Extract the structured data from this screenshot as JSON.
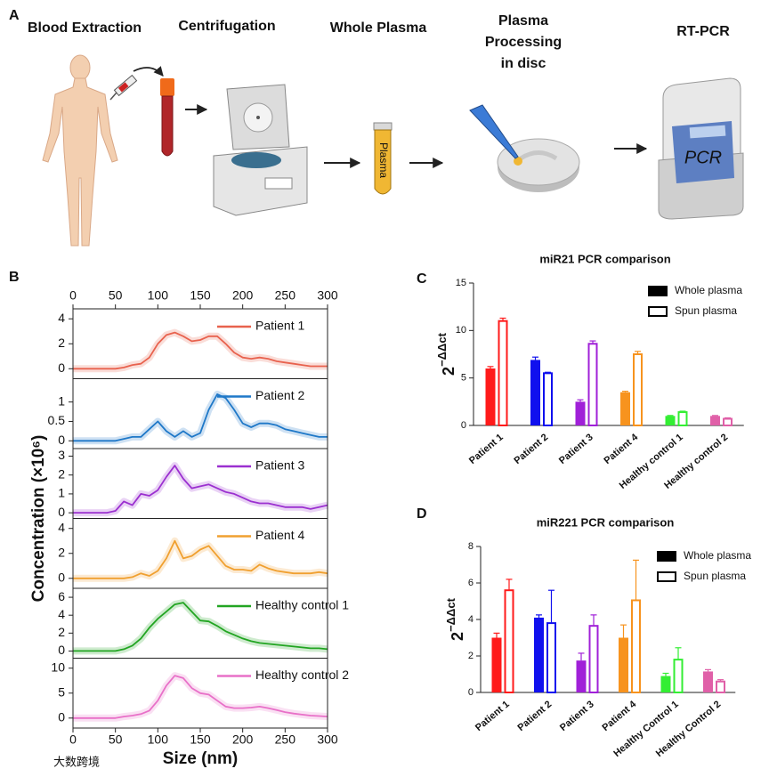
{
  "panel_labels": [
    "A",
    "B",
    "C",
    "D"
  ],
  "workflow": {
    "steps": [
      {
        "title_lines": [
          "Blood Extraction"
        ]
      },
      {
        "title_lines": [
          "Centrifugation"
        ]
      },
      {
        "title_lines": [
          "Whole Plasma"
        ]
      },
      {
        "title_lines": [
          "Plasma",
          "Processing",
          "in disc"
        ]
      },
      {
        "title_lines": [
          "RT-PCR"
        ]
      }
    ],
    "tube_label": "Plasma",
    "device_label": "PCR"
  },
  "watermark": "大数跨境",
  "chart_data": [
    {
      "type": "line",
      "xlabel": "Size (nm)",
      "ylabel": "Concentration (×10⁶)",
      "xlim": [
        0,
        300
      ],
      "xticks": [
        0,
        50,
        100,
        150,
        200,
        250,
        300
      ],
      "x": [
        0,
        10,
        20,
        30,
        40,
        50,
        60,
        70,
        80,
        90,
        100,
        110,
        120,
        130,
        140,
        150,
        160,
        170,
        180,
        190,
        200,
        210,
        220,
        230,
        240,
        250,
        260,
        270,
        280,
        290,
        300
      ],
      "series": [
        {
          "name": "Patient 1",
          "color": "#e8624e",
          "ylim": [
            -0.8,
            4.8
          ],
          "yticks": [
            0,
            2,
            4
          ],
          "values": [
            0,
            0,
            0,
            0,
            0,
            0,
            0.1,
            0.3,
            0.4,
            0.9,
            2.0,
            2.7,
            2.9,
            2.6,
            2.2,
            2.3,
            2.6,
            2.6,
            2.0,
            1.3,
            0.9,
            0.8,
            0.9,
            0.8,
            0.6,
            0.5,
            0.4,
            0.3,
            0.2,
            0.2,
            0.2
          ]
        },
        {
          "name": "Patient 2",
          "color": "#1f78c8",
          "ylim": [
            -0.2,
            1.6
          ],
          "yticks": [
            0,
            0.5,
            1
          ],
          "values": [
            0,
            0,
            0,
            0,
            0,
            0,
            0.05,
            0.1,
            0.1,
            0.3,
            0.5,
            0.25,
            0.1,
            0.25,
            0.1,
            0.2,
            0.8,
            1.2,
            1.1,
            0.8,
            0.45,
            0.35,
            0.45,
            0.45,
            0.4,
            0.3,
            0.25,
            0.2,
            0.15,
            0.1,
            0.1
          ]
        },
        {
          "name": "Patient 3",
          "color": "#9b30d0",
          "ylim": [
            -0.3,
            3.4
          ],
          "yticks": [
            0,
            1,
            2,
            3
          ],
          "values": [
            0,
            0,
            0,
            0,
            0,
            0.1,
            0.6,
            0.4,
            1.0,
            0.9,
            1.2,
            1.9,
            2.5,
            1.8,
            1.3,
            1.4,
            1.5,
            1.3,
            1.1,
            1.0,
            0.8,
            0.6,
            0.5,
            0.5,
            0.4,
            0.3,
            0.3,
            0.3,
            0.2,
            0.3,
            0.4
          ]
        },
        {
          "name": "Patient 4",
          "color": "#f0a030",
          "ylim": [
            -0.8,
            4.8
          ],
          "yticks": [
            0,
            2,
            4
          ],
          "values": [
            0,
            0,
            0,
            0,
            0,
            0,
            0,
            0.1,
            0.4,
            0.2,
            0.6,
            1.6,
            3.0,
            1.6,
            1.8,
            2.3,
            2.6,
            1.8,
            1.0,
            0.7,
            0.7,
            0.6,
            1.1,
            0.8,
            0.6,
            0.5,
            0.4,
            0.4,
            0.4,
            0.5,
            0.4
          ]
        },
        {
          "name": "Healthy control 1",
          "color": "#22a522",
          "ylim": [
            -0.8,
            7
          ],
          "yticks": [
            0,
            2,
            4,
            6
          ],
          "values": [
            0,
            0,
            0,
            0,
            0,
            0,
            0.2,
            0.6,
            1.4,
            2.6,
            3.6,
            4.4,
            5.2,
            5.4,
            4.4,
            3.4,
            3.3,
            2.8,
            2.2,
            1.8,
            1.4,
            1.1,
            0.9,
            0.8,
            0.7,
            0.6,
            0.5,
            0.4,
            0.3,
            0.3,
            0.2
          ]
        },
        {
          "name": "Healthy control 2",
          "color": "#e870c8",
          "ylim": [
            -2,
            12
          ],
          "yticks": [
            0,
            5,
            10
          ],
          "values": [
            0,
            0,
            0,
            0,
            0,
            0,
            0.3,
            0.5,
            0.8,
            1.5,
            3.5,
            6.5,
            8.5,
            8.0,
            6.0,
            5.0,
            4.7,
            3.5,
            2.3,
            2.0,
            2.0,
            2.1,
            2.3,
            2.0,
            1.6,
            1.2,
            0.9,
            0.7,
            0.5,
            0.4,
            0.3
          ]
        }
      ]
    },
    {
      "type": "bar",
      "title": "miR21 PCR comparison",
      "ylabel": {
        "base": "2",
        "exponent": "−ΔΔct"
      },
      "categories": [
        "Patient 1",
        "Patient 2",
        "Patient 3",
        "Patient 4",
        "Healthy control 1",
        "Healthy control 2"
      ],
      "category_colors": [
        "#ff1a1a",
        "#1010ee",
        "#a020d8",
        "#f7931e",
        "#33ee33",
        "#e060a8"
      ],
      "ylim": [
        0,
        15
      ],
      "yticks": [
        0,
        5,
        10,
        15
      ],
      "legend": "upper right",
      "series": [
        {
          "name": "Whole plasma",
          "style": "filled",
          "values": [
            6.0,
            6.9,
            2.5,
            3.5,
            1.0,
            1.0
          ],
          "errors": [
            0.2,
            0.3,
            0.2,
            0.1,
            0.05,
            0.05
          ]
        },
        {
          "name": "Spun  plasma",
          "style": "open",
          "values": [
            11.0,
            5.5,
            8.6,
            7.5,
            1.4,
            0.7
          ],
          "errors": [
            0.3,
            0.1,
            0.3,
            0.3,
            0.1,
            0.1
          ]
        }
      ]
    },
    {
      "type": "bar",
      "title": "miR221 PCR comparison",
      "ylabel": {
        "base": "2",
        "exponent": "−ΔΔct"
      },
      "categories": [
        "Patient 1",
        "Patient 2",
        "Patient 3",
        "Patient 4",
        "Healthy Control 1",
        "Healthy Control 2"
      ],
      "category_colors": [
        "#ff1a1a",
        "#1010ee",
        "#a020d8",
        "#f7931e",
        "#33ee33",
        "#e060a8"
      ],
      "ylim": [
        0,
        8
      ],
      "yticks": [
        0,
        2,
        4,
        6,
        8
      ],
      "legend": "upper right",
      "series": [
        {
          "name": "Whole plasma",
          "style": "filled",
          "values": [
            3.0,
            4.1,
            1.75,
            3.0,
            0.9,
            1.15
          ],
          "errors": [
            0.25,
            0.15,
            0.4,
            0.7,
            0.15,
            0.1
          ]
        },
        {
          "name": "Spun plasma",
          "style": "open",
          "values": [
            5.6,
            3.8,
            3.65,
            5.05,
            1.8,
            0.6
          ],
          "errors": [
            0.6,
            1.8,
            0.6,
            2.2,
            0.65,
            0.1
          ]
        }
      ]
    }
  ]
}
